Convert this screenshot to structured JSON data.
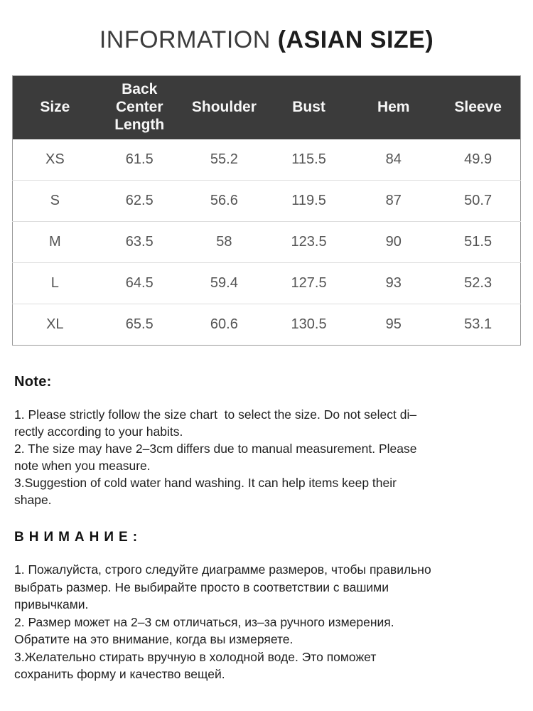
{
  "title": {
    "light": "INFORMATION ",
    "bold": "(ASIAN SIZE)"
  },
  "table": {
    "header_bg": "#3b3b3b",
    "header_text_color": "#f7f7f7",
    "border_color": "#9a9a9a",
    "row_divider_color": "#dddddd",
    "columns": [
      "Size",
      "Back Center Length",
      "Shoulder",
      "Bust",
      "Hem",
      "Sleeve"
    ],
    "rows": [
      [
        "XS",
        "61.5",
        "55.2",
        "115.5",
        "84",
        "49.9"
      ],
      [
        "S",
        "62.5",
        "56.6",
        "119.5",
        "87",
        "50.7"
      ],
      [
        "M",
        "63.5",
        "58",
        "123.5",
        "90",
        "51.5"
      ],
      [
        "L",
        "64.5",
        "59.4",
        "127.5",
        "93",
        "52.3"
      ],
      [
        "XL",
        "65.5",
        "60.6",
        "130.5",
        "95",
        "53.1"
      ]
    ]
  },
  "note": {
    "heading": "Note:",
    "lines": [
      "1. Please strictly follow the size chart  to select the size. Do not select di–",
      "rectly according to your habits.",
      "2. The size may have 2–3cm differs due to manual measurement. Please",
      "note when you measure.",
      "3.Suggestion of cold water hand washing. It can help items keep their",
      "shape."
    ]
  },
  "attention": {
    "heading": "ВНИМАНИЕ:",
    "lines": [
      "1. Пожалуйста, строго следуйте диаграмме размеров, чтобы правильно",
      "выбрать размер. Не выбирайте просто в соответствии с вашими",
      "привычками.",
      "2. Размер может на 2–3 см отличаться, из–за ручного измерения.",
      "Обратите на это внимание, когда вы измеряете.",
      "3.Желательно стирать вручную в холодной воде. Это поможет",
      "сохранить форму и качество вещей."
    ]
  }
}
